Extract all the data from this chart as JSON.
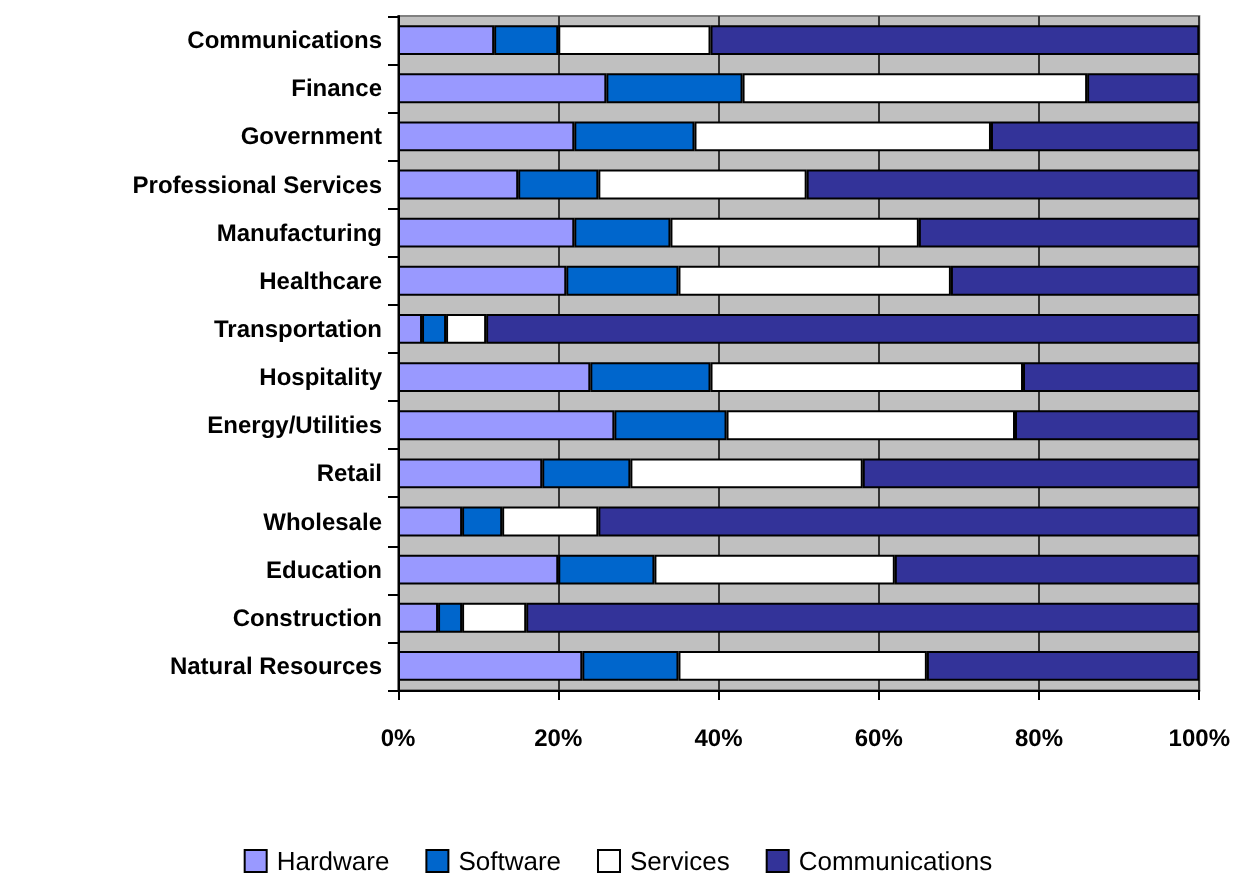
{
  "chart_data": {
    "type": "bar",
    "orientation": "horizontal",
    "stacked": true,
    "categories": [
      "Communications",
      "Finance",
      "Government",
      "Professional Services",
      "Manufacturing",
      "Healthcare",
      "Transportation",
      "Hospitality",
      "Energy/Utilities",
      "Retail",
      "Wholesale",
      "Education",
      "Construction",
      "Natural Resources"
    ],
    "series": [
      {
        "name": "Hardware",
        "color": "#9999ff",
        "values": [
          12,
          26,
          22,
          15,
          22,
          21,
          3,
          24,
          27,
          18,
          8,
          20,
          5,
          23
        ]
      },
      {
        "name": "Software",
        "color": "#0066cc",
        "values": [
          8,
          17,
          15,
          10,
          12,
          14,
          3,
          15,
          14,
          11,
          5,
          12,
          3,
          12
        ]
      },
      {
        "name": "Services",
        "color": "#ffffff",
        "values": [
          19,
          43,
          37,
          26,
          31,
          34,
          5,
          39,
          36,
          29,
          12,
          30,
          8,
          31
        ]
      },
      {
        "name": "Communications",
        "color": "#333399",
        "values": [
          61,
          14,
          26,
          49,
          35,
          31,
          89,
          22,
          23,
          42,
          75,
          38,
          84,
          34
        ]
      }
    ],
    "xlim": [
      0,
      100
    ],
    "xticks": [
      {
        "value": 0,
        "label": "0%"
      },
      {
        "value": 20,
        "label": "20%"
      },
      {
        "value": 40,
        "label": "40%"
      },
      {
        "value": 60,
        "label": "60%"
      },
      {
        "value": 80,
        "label": "80%"
      },
      {
        "value": 100,
        "label": "100%"
      }
    ],
    "grid": "x",
    "legend": "bottom"
  }
}
